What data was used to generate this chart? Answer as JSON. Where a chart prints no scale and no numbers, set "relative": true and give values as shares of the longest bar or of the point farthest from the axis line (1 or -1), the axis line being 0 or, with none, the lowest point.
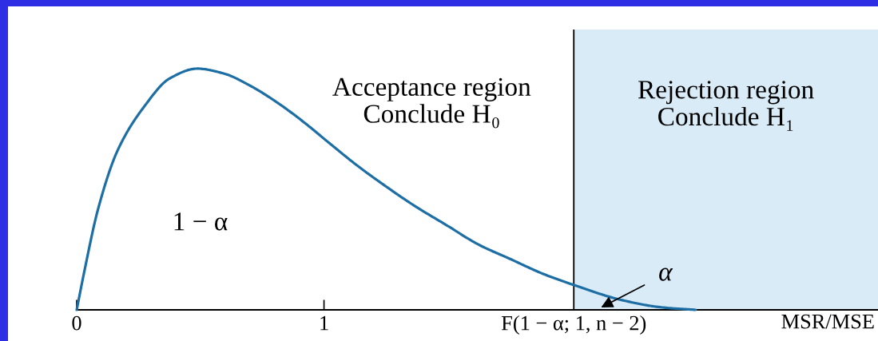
{
  "chart_data": {
    "type": "line",
    "relative": true,
    "x": [
      0,
      0.029,
      0.087,
      0.165,
      0.271,
      0.377,
      0.487,
      0.594,
      0.7,
      0.81,
      0.916,
      1.023,
      1.132,
      1.239,
      1.368,
      1.497,
      1.626,
      1.755,
      1.884,
      2.019,
      2.206,
      2.368,
      2.503
    ],
    "series": [
      {
        "color": "#1c6ea4",
        "values": [
          0,
          0.15,
          0.42,
          0.66,
          0.84,
          0.96,
          1.0,
          0.98,
          0.93,
          0.86,
          0.78,
          0.69,
          0.6,
          0.52,
          0.43,
          0.35,
          0.27,
          0.21,
          0.15,
          0.1,
          0.04,
          0.01,
          0
        ]
      }
    ],
    "xlim": [
      0,
      3.24
    ],
    "xticks": [
      0,
      1
    ],
    "xlabel": "MSR/MSE",
    "ref_lines": [
      {
        "axis": "x",
        "value": 2.01,
        "label": "F(1 − α; 1, n − 2)",
        "color": "#000000"
      }
    ],
    "bands": [
      {
        "axis": "x",
        "from": 2.01,
        "to": 3.24,
        "label": "Rejection region\nConclude H₁",
        "color": "#d8ebf6"
      }
    ],
    "annotations": [
      "Acceptance region\nConclude H₀",
      "1 − α",
      {
        "text": "α",
        "x": 2.12,
        "y": 0.01
      }
    ],
    "grid": false,
    "legend": false
  }
}
